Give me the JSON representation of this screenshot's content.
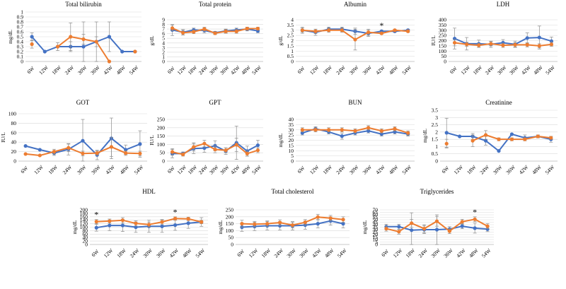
{
  "series_colors": {
    "blue": "#4472c4",
    "orange": "#ed7d31",
    "error": "#8c8c8c",
    "grid": "#d9d9d9"
  },
  "chart_data": [
    {
      "type": "line",
      "title": "Total bilirubin",
      "ylabel": "mg/dL",
      "ylim": [
        0,
        1
      ],
      "yticks": [
        0,
        0.1,
        0.2,
        0.3,
        0.4,
        0.5,
        0.6,
        0.7,
        0.8,
        0.9,
        1
      ],
      "categories": [
        "6W",
        "12W",
        "18W",
        "24W",
        "30W",
        "36W",
        "42W",
        "48W",
        "54W"
      ],
      "series": [
        {
          "name": "blue",
          "values": [
            0.5,
            0.2,
            0.3,
            0.3,
            0.3,
            0.4,
            0.5,
            0.2,
            0.2
          ],
          "errors": [
            0.08,
            0,
            0,
            0.1,
            0.5,
            0.4,
            0.3,
            0,
            0
          ]
        },
        {
          "name": "orange",
          "values": [
            0.35,
            null,
            0.3,
            0.5,
            0.45,
            0.4,
            0.0,
            null,
            0.2
          ],
          "errors": [
            0.08,
            0,
            0.08,
            0.28,
            0.1,
            0.1,
            0,
            0,
            0
          ]
        }
      ],
      "stars": []
    },
    {
      "type": "line",
      "title": "Total protein",
      "ylabel": "g/dL",
      "ylim": [
        0,
        9
      ],
      "yticks": [
        0,
        1,
        2,
        3,
        4,
        5,
        6,
        7,
        8,
        9
      ],
      "categories": [
        "6W",
        "12W",
        "18W",
        "24W",
        "30W",
        "36W",
        "42W",
        "48W",
        "54W"
      ],
      "series": [
        {
          "name": "blue",
          "values": [
            6.8,
            6.3,
            6.8,
            6.7,
            6.2,
            6.6,
            6.8,
            7.0,
            6.6
          ],
          "errors": [
            1.2,
            0.6,
            0.4,
            0.5,
            0.3,
            0.4,
            0.4,
            0.4,
            0.4
          ]
        },
        {
          "name": "orange",
          "values": [
            7.2,
            6.2,
            6.4,
            7.0,
            6.1,
            6.5,
            6.5,
            7.1,
            7.1
          ],
          "errors": [
            0.6,
            0.5,
            0.4,
            0.4,
            0.3,
            0.4,
            0.4,
            0.3,
            0.3
          ]
        }
      ],
      "stars": []
    },
    {
      "type": "line",
      "title": "Albumin",
      "ylabel": "g/dL",
      "ylim": [
        0,
        4
      ],
      "yticks": [
        0,
        0.5,
        1,
        1.5,
        2,
        2.5,
        3,
        3.5,
        4
      ],
      "categories": [
        "6W",
        "12W",
        "18W",
        "24W",
        "30W",
        "36W",
        "42W",
        "48W",
        "54W"
      ],
      "series": [
        {
          "name": "blue",
          "values": [
            3.0,
            2.8,
            3.1,
            3.1,
            2.9,
            2.7,
            2.9,
            2.9,
            3.0
          ],
          "errors": [
            0.3,
            0.3,
            0.2,
            0.2,
            0.3,
            0.3,
            0.1,
            0.1,
            0.1
          ]
        },
        {
          "name": "orange",
          "values": [
            3.0,
            2.9,
            3.0,
            3.0,
            2.1,
            2.8,
            2.7,
            3.0,
            2.9
          ],
          "errors": [
            0.2,
            0.2,
            0.2,
            0.2,
            1.0,
            0.3,
            0.1,
            0.1,
            0.1
          ]
        }
      ],
      "stars": [
        {
          "index": 6,
          "label": "*"
        }
      ]
    },
    {
      "type": "line",
      "title": "LDH",
      "ylabel": "IU/L",
      "ylim": [
        0,
        400
      ],
      "yticks": [
        0,
        50,
        100,
        150,
        200,
        250,
        300,
        350,
        400
      ],
      "categories": [
        "6W",
        "12W",
        "18W",
        "24W",
        "30W",
        "36W",
        "42W",
        "48W",
        "54W"
      ],
      "series": [
        {
          "name": "blue",
          "values": [
            220,
            170,
            170,
            165,
            180,
            165,
            225,
            230,
            195
          ],
          "errors": [
            100,
            60,
            35,
            30,
            30,
            30,
            50,
            110,
            40
          ]
        },
        {
          "name": "orange",
          "values": [
            180,
            165,
            155,
            170,
            155,
            160,
            160,
            150,
            165
          ],
          "errors": [
            30,
            20,
            20,
            20,
            20,
            20,
            20,
            20,
            20
          ]
        }
      ],
      "stars": []
    },
    {
      "type": "line",
      "title": "GOT",
      "ylabel": "IU/L",
      "ylim": [
        0,
        100
      ],
      "yticks": [
        0,
        20,
        40,
        60,
        80,
        100
      ],
      "categories": [
        "6W",
        "12W",
        "18W",
        "24W",
        "30W",
        "36W",
        "42W",
        "48W",
        "54W"
      ],
      "series": [
        {
          "name": "blue",
          "values": [
            32,
            24,
            17,
            25,
            43,
            13,
            48,
            24,
            36
          ],
          "errors": [
            0,
            0,
            5,
            12,
            45,
            10,
            43,
            10,
            28
          ]
        },
        {
          "name": "orange",
          "values": [
            15,
            12,
            20,
            28,
            16,
            17,
            30,
            17,
            16
          ],
          "errors": [
            0,
            0,
            5,
            8,
            5,
            5,
            20,
            5,
            5
          ]
        }
      ],
      "stars": []
    },
    {
      "type": "line",
      "title": "GPT",
      "ylabel": "IU/L",
      "ylim": [
        0,
        250
      ],
      "yticks": [
        0,
        50,
        100,
        150,
        200,
        250
      ],
      "categories": [
        "6W",
        "12W",
        "18W",
        "24W",
        "30W",
        "36W",
        "42W",
        "48W",
        "54W"
      ],
      "series": [
        {
          "name": "blue",
          "values": [
            45,
            45,
            75,
            78,
            92,
            60,
            110,
            60,
            95
          ],
          "errors": [
            25,
            10,
            30,
            25,
            30,
            20,
            100,
            30,
            30
          ]
        },
        {
          "name": "orange",
          "values": [
            55,
            40,
            85,
            105,
            70,
            65,
            98,
            45,
            65
          ],
          "errors": [
            20,
            10,
            25,
            20,
            20,
            15,
            40,
            15,
            15
          ]
        }
      ],
      "stars": []
    },
    {
      "type": "line",
      "title": "BUN",
      "ylabel": "mg/dL",
      "ylim": [
        0,
        40
      ],
      "yticks": [
        0,
        5,
        10,
        15,
        20,
        25,
        30,
        35,
        40
      ],
      "categories": [
        "6W",
        "12W",
        "18W",
        "24W",
        "30W",
        "36W",
        "42W",
        "48W",
        "54W"
      ],
      "series": [
        {
          "name": "blue",
          "values": [
            27,
            31,
            28,
            24,
            27,
            29,
            26,
            28,
            26
          ],
          "errors": [
            2,
            2,
            2,
            3,
            2,
            2,
            2,
            2,
            2
          ]
        },
        {
          "name": "orange",
          "values": [
            30,
            30,
            30,
            30,
            29,
            32,
            29,
            31,
            27
          ],
          "errors": [
            2,
            2,
            2,
            2,
            2,
            2,
            2,
            2,
            2
          ]
        }
      ],
      "stars": []
    },
    {
      "type": "line",
      "title": "Creatinine",
      "ylabel": "mg/dL",
      "ylim": [
        0,
        3.5
      ],
      "yticks": [
        0,
        0.5,
        1,
        1.5,
        2,
        2.5,
        3,
        3.5
      ],
      "categories": [
        "6W",
        "12W",
        "18W",
        "24W",
        "30W",
        "36W",
        "42W",
        "48W",
        "54W"
      ],
      "series": [
        {
          "name": "blue",
          "values": [
            1.95,
            1.7,
            1.7,
            1.4,
            0.7,
            1.85,
            1.6,
            1.7,
            1.5
          ],
          "errors": [
            1.0,
            0,
            0.2,
            0.3,
            0,
            0,
            0.2,
            0.1,
            0.2
          ]
        },
        {
          "name": "orange",
          "values": [
            1.2,
            null,
            1.4,
            1.8,
            1.5,
            1.5,
            1.5,
            1.7,
            1.6
          ],
          "errors": [
            0.3,
            0,
            0.4,
            0.3,
            0.1,
            0.1,
            0.1,
            0.1,
            0.1
          ]
        }
      ],
      "stars": []
    },
    {
      "type": "line",
      "title": "HDL",
      "ylabel": "mg/dL",
      "ylim": [
        0,
        200
      ],
      "yticks": [
        0,
        20,
        40,
        60,
        80,
        100,
        120,
        140,
        160,
        180,
        200
      ],
      "categories": [
        "6W",
        "12W",
        "18W",
        "24W",
        "30W",
        "36W",
        "42W",
        "48W",
        "54W"
      ],
      "series": [
        {
          "name": "blue",
          "values": [
            97,
            110,
            110,
            100,
            105,
            105,
            112,
            123,
            130
          ],
          "errors": [
            20,
            30,
            35,
            30,
            35,
            35,
            30,
            30,
            25
          ]
        },
        {
          "name": "orange",
          "values": [
            132,
            135,
            140,
            122,
            115,
            130,
            150,
            148,
            130
          ],
          "errors": [
            12,
            12,
            15,
            15,
            15,
            15,
            10,
            10,
            10
          ]
        }
      ],
      "stars": [
        {
          "index": 0,
          "label": "*"
        },
        {
          "index": 6,
          "label": "*"
        }
      ]
    },
    {
      "type": "line",
      "title": "Total cholesterol",
      "ylabel": "mg/dL",
      "ylim": [
        0,
        250
      ],
      "yticks": [
        0,
        50,
        100,
        150,
        200,
        250
      ],
      "categories": [
        "6W",
        "12W",
        "18W",
        "24W",
        "30W",
        "36W",
        "42W",
        "48W",
        "54W"
      ],
      "series": [
        {
          "name": "blue",
          "values": [
            125,
            130,
            135,
            135,
            135,
            140,
            150,
            170,
            150
          ],
          "errors": [
            30,
            30,
            30,
            30,
            30,
            30,
            30,
            30,
            30
          ]
        },
        {
          "name": "orange",
          "values": [
            150,
            147,
            150,
            158,
            140,
            160,
            198,
            190,
            180
          ],
          "errors": [
            25,
            20,
            20,
            20,
            20,
            20,
            20,
            20,
            20
          ]
        }
      ],
      "stars": []
    },
    {
      "type": "line",
      "title": "Triglycerides",
      "ylabel": "mg/dL",
      "ylim": [
        0,
        70
      ],
      "yticks": [
        0,
        5,
        10,
        15,
        20,
        25,
        30,
        35,
        40,
        45,
        50,
        55,
        60,
        65,
        70
      ],
      "categories": [
        "6W",
        "12W",
        "18W",
        "24W",
        "30W",
        "36W",
        "42W",
        "48W",
        "54W"
      ],
      "series": [
        {
          "name": "blue",
          "values": [
            36,
            36,
            29,
            30,
            30,
            31,
            37,
            33,
            31
          ],
          "errors": [
            5,
            5,
            35,
            8,
            30,
            5,
            5,
            10,
            5
          ]
        },
        {
          "name": "orange",
          "values": [
            32,
            26,
            43,
            32,
            47,
            27,
            46,
            51,
            37
          ],
          "errors": [
            5,
            5,
            8,
            8,
            10,
            5,
            5,
            5,
            5
          ]
        }
      ],
      "stars": [
        {
          "index": 7,
          "label": "*"
        }
      ]
    }
  ]
}
